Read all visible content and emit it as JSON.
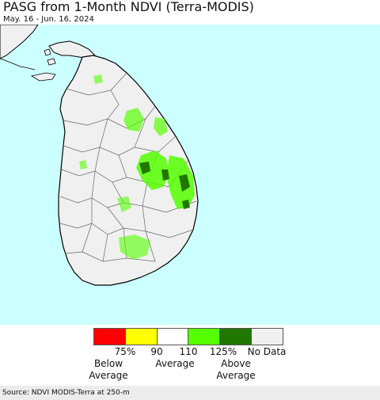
{
  "header": {
    "title": "PASG from 1-Month NDVI (Terra-MODIS)",
    "date_range": "May. 16 - Jun. 16, 2024"
  },
  "map": {
    "ocean_color": "#ccffff",
    "land_color": "#f0f0f0",
    "border_color": "#666666",
    "coast_color": "#000000",
    "green_light": "#55ff00",
    "green_dark": "#227700"
  },
  "legend": {
    "swatches": [
      {
        "color": "#ff0000"
      },
      {
        "color": "#ffff00"
      },
      {
        "color": "#ffffff"
      },
      {
        "color": "#55ff00"
      },
      {
        "color": "#227700"
      },
      {
        "color": "#f0f0f0"
      }
    ],
    "tick_labels": [
      "75%",
      "90",
      "110",
      "125%",
      "No Data"
    ],
    "below_label": "Below\nAverage",
    "average_label": "Average",
    "above_label": "Above\nAverage"
  },
  "footer": {
    "source": "Source: NDVI MODIS-Terra at 250-m"
  }
}
